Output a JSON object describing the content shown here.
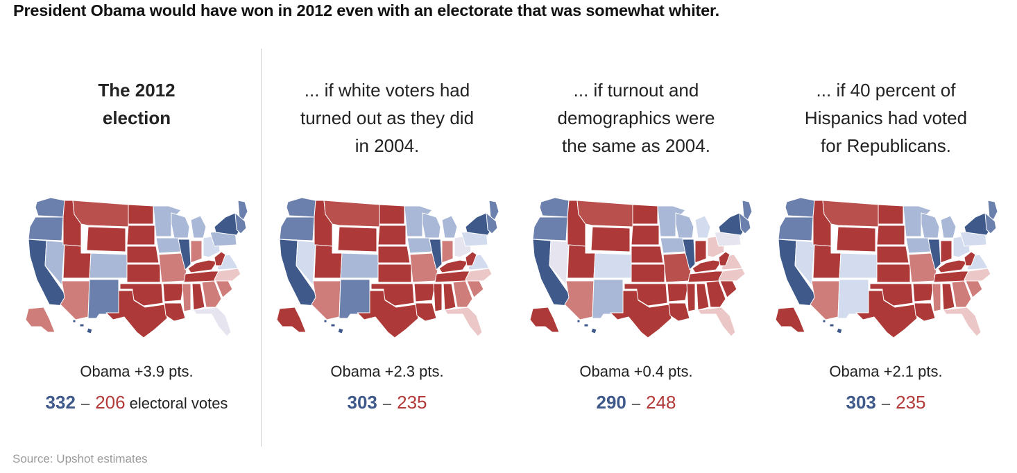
{
  "title": "President Obama would have won in 2012 even with an electorate that was somewhat whiter.",
  "source": "Source: Upshot estimates",
  "colors": {
    "strong_dem": "#3f5a8a",
    "dem": "#6b80ad",
    "lean_dem": "#a9b8d6",
    "tilt_dem": "#d2dcee",
    "tossup": "#e6e4ef",
    "tilt_rep": "#ebc8c7",
    "lean_rep": "#cf7d7b",
    "rep": "#b9504e",
    "strong_rep": "#ad3a38"
  },
  "panels": [
    {
      "heading": [
        "The 2012",
        "election"
      ],
      "heading_bold": true,
      "margin_text": "Obama +3.9 pts.",
      "dem_ev": "332",
      "rep_ev": "206",
      "ev_suffix": "electoral votes",
      "states": {
        "WA": "dem",
        "OR": "dem",
        "CA": "strong_dem",
        "NV": "lean_dem",
        "ID": "strong_rep",
        "MT": "rep",
        "WY": "strong_rep",
        "UT": "strong_rep",
        "CO": "lean_dem",
        "AZ": "lean_rep",
        "NM": "dem",
        "ND": "strong_rep",
        "SD": "strong_rep",
        "NE": "strong_rep",
        "KS": "strong_rep",
        "OK": "strong_rep",
        "TX": "strong_rep",
        "MN": "lean_dem",
        "IA": "lean_dem",
        "MO": "lean_rep",
        "AR": "strong_rep",
        "LA": "strong_rep",
        "WI": "lean_dem",
        "IL": "strong_dem",
        "MI": "lean_dem",
        "IN": "lean_rep",
        "OH": "tilt_dem",
        "KY": "strong_rep",
        "TN": "strong_rep",
        "MS": "lean_rep",
        "AL": "strong_rep",
        "GA": "lean_rep",
        "FL": "tossup",
        "SC": "lean_rep",
        "NC": "tilt_rep",
        "VA": "tilt_dem",
        "WV": "strong_rep",
        "PA": "lean_dem",
        "NY": "strong_dem",
        "ME": "dem",
        "NE2": "dem",
        "AK": "lean_rep",
        "HI": "strong_dem"
      }
    },
    {
      "heading": [
        "... if white voters had",
        "turned out as they did",
        "in 2004."
      ],
      "heading_bold": false,
      "margin_text": "Obama +2.3 pts.",
      "dem_ev": "303",
      "rep_ev": "235",
      "ev_suffix": "",
      "states": {
        "WA": "dem",
        "OR": "dem",
        "CA": "strong_dem",
        "NV": "tilt_dem",
        "ID": "strong_rep",
        "MT": "rep",
        "WY": "strong_rep",
        "UT": "strong_rep",
        "CO": "lean_dem",
        "AZ": "lean_rep",
        "NM": "dem",
        "ND": "strong_rep",
        "SD": "strong_rep",
        "NE": "strong_rep",
        "KS": "strong_rep",
        "OK": "strong_rep",
        "TX": "strong_rep",
        "MN": "lean_dem",
        "IA": "lean_dem",
        "MO": "lean_rep",
        "AR": "strong_rep",
        "LA": "strong_rep",
        "WI": "lean_dem",
        "IL": "strong_dem",
        "MI": "lean_dem",
        "IN": "lean_rep",
        "OH": "tossup",
        "KY": "strong_rep",
        "TN": "strong_rep",
        "MS": "strong_rep",
        "AL": "strong_rep",
        "GA": "lean_rep",
        "FL": "tilt_rep",
        "SC": "lean_rep",
        "NC": "tilt_rep",
        "VA": "tilt_dem",
        "WV": "strong_rep",
        "PA": "tilt_dem",
        "NY": "strong_dem",
        "ME": "dem",
        "NE2": "dem",
        "AK": "strong_rep",
        "HI": "strong_dem"
      }
    },
    {
      "heading": [
        "... if turnout and",
        "demographics were",
        "the same as 2004."
      ],
      "heading_bold": false,
      "margin_text": "Obama +0.4 pts.",
      "dem_ev": "290",
      "rep_ev": "248",
      "ev_suffix": "",
      "states": {
        "WA": "dem",
        "OR": "dem",
        "CA": "strong_dem",
        "NV": "tossup",
        "ID": "strong_rep",
        "MT": "rep",
        "WY": "strong_rep",
        "UT": "strong_rep",
        "CO": "tilt_dem",
        "AZ": "lean_rep",
        "NM": "lean_dem",
        "ND": "strong_rep",
        "SD": "strong_rep",
        "NE": "strong_rep",
        "KS": "strong_rep",
        "OK": "strong_rep",
        "TX": "strong_rep",
        "MN": "lean_dem",
        "IA": "lean_dem",
        "MO": "rep",
        "AR": "strong_rep",
        "LA": "strong_rep",
        "WI": "lean_dem",
        "IL": "strong_dem",
        "MI": "tilt_dem",
        "IN": "strong_rep",
        "OH": "tilt_rep",
        "KY": "strong_rep",
        "TN": "strong_rep",
        "MS": "strong_rep",
        "AL": "strong_rep",
        "GA": "strong_rep",
        "FL": "tilt_rep",
        "SC": "strong_rep",
        "NC": "tilt_rep",
        "VA": "tilt_rep",
        "WV": "strong_rep",
        "PA": "tossup",
        "NY": "strong_dem",
        "ME": "dem",
        "NE2": "dem",
        "AK": "strong_rep",
        "HI": "strong_dem"
      }
    },
    {
      "heading": [
        "... if 40 percent of",
        "Hispanics had voted",
        "for Republicans."
      ],
      "heading_bold": false,
      "margin_text": "Obama +2.1 pts.",
      "dem_ev": "303",
      "rep_ev": "235",
      "ev_suffix": "",
      "states": {
        "WA": "dem",
        "OR": "dem",
        "CA": "strong_dem",
        "NV": "tilt_dem",
        "ID": "strong_rep",
        "MT": "rep",
        "WY": "strong_rep",
        "UT": "strong_rep",
        "CO": "tilt_dem",
        "AZ": "lean_rep",
        "NM": "tilt_dem",
        "ND": "strong_rep",
        "SD": "strong_rep",
        "NE": "strong_rep",
        "KS": "strong_rep",
        "OK": "strong_rep",
        "TX": "strong_rep",
        "MN": "lean_dem",
        "IA": "lean_dem",
        "MO": "lean_rep",
        "AR": "strong_rep",
        "LA": "strong_rep",
        "WI": "lean_dem",
        "IL": "strong_dem",
        "MI": "lean_dem",
        "IN": "strong_rep",
        "OH": "tilt_dem",
        "KY": "strong_rep",
        "TN": "strong_rep",
        "MS": "lean_rep",
        "AL": "strong_rep",
        "GA": "lean_rep",
        "FL": "tilt_rep",
        "SC": "lean_rep",
        "NC": "tilt_rep",
        "VA": "tilt_dem",
        "WV": "strong_rep",
        "PA": "tilt_dem",
        "NY": "strong_dem",
        "ME": "dem",
        "NE2": "dem",
        "AK": "strong_rep",
        "HI": "strong_dem"
      }
    }
  ]
}
